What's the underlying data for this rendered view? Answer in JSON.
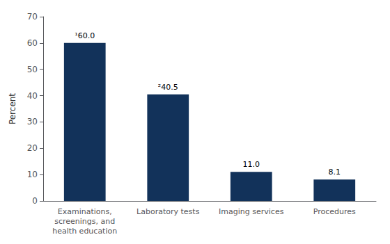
{
  "chart_data": {
    "type": "bar",
    "categories": [
      "Examinations,\nscreenings, and\nhealth education",
      "Laboratory tests",
      "Imaging services",
      "Procedures"
    ],
    "values": [
      60.0,
      40.5,
      11.0,
      8.1
    ],
    "value_labels": [
      "¹60.0",
      "²40.5",
      "11.0",
      "8.1"
    ],
    "data_labels": true,
    "color": "#12325a",
    "ylabel": "Percent",
    "ylim": [
      0,
      70
    ],
    "yticks": [
      0,
      10,
      20,
      30,
      40,
      50,
      60,
      70
    ],
    "grid": false
  }
}
